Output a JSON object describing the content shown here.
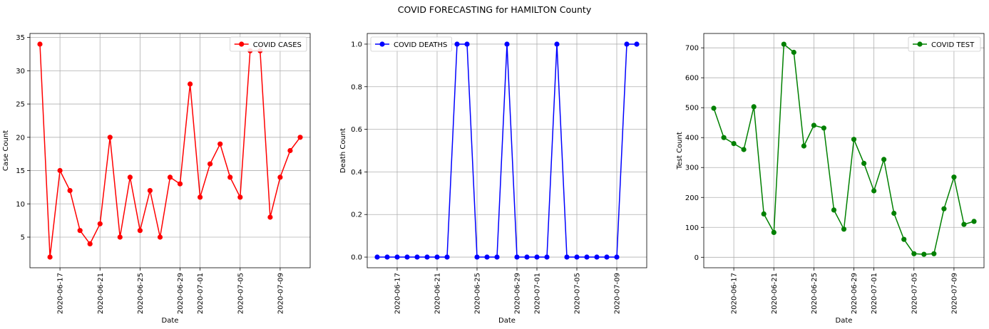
{
  "figure": {
    "title": "COVID FORECASTING for HAMILTON County"
  },
  "chart_data": [
    {
      "type": "line",
      "xlabel": "Date",
      "ylabel": "Case Count",
      "legend": "top-right",
      "grid": true,
      "color": "#ff0000",
      "x_range": [
        "2020-06-14",
        "2020-07-12"
      ],
      "ylim": [
        0.4,
        35.6
      ],
      "yticks": [
        5,
        10,
        15,
        20,
        25,
        30,
        35
      ],
      "xticks": [
        "2020-06-17",
        "2020-06-21",
        "2020-06-25",
        "2020-06-29",
        "2020-07-01",
        "2020-07-05",
        "2020-07-09"
      ],
      "series": [
        {
          "name": "COVID CASES",
          "x": [
            "2020-06-15",
            "2020-06-16",
            "2020-06-17",
            "2020-06-18",
            "2020-06-19",
            "2020-06-20",
            "2020-06-21",
            "2020-06-22",
            "2020-06-23",
            "2020-06-24",
            "2020-06-25",
            "2020-06-26",
            "2020-06-27",
            "2020-06-28",
            "2020-06-29",
            "2020-06-30",
            "2020-07-01",
            "2020-07-02",
            "2020-07-03",
            "2020-07-04",
            "2020-07-05",
            "2020-07-06",
            "2020-07-07",
            "2020-07-08",
            "2020-07-09",
            "2020-07-10",
            "2020-07-11"
          ],
          "values": [
            34,
            2,
            15,
            12,
            6,
            4,
            7,
            20,
            5,
            14,
            6,
            12,
            5,
            14,
            13,
            28,
            11,
            16,
            19,
            14,
            11,
            33,
            33,
            8,
            14,
            18,
            20
          ]
        }
      ]
    },
    {
      "type": "line",
      "xlabel": "Date",
      "ylabel": "Death Count",
      "legend": "top-left",
      "grid": true,
      "color": "#0000ff",
      "x_range": [
        "2020-06-14",
        "2020-07-12"
      ],
      "ylim": [
        -0.05,
        1.05
      ],
      "yticks": [
        0.0,
        0.2,
        0.4,
        0.6,
        0.8,
        1.0
      ],
      "ytick_labels": [
        "0.0",
        "0.2",
        "0.4",
        "0.6",
        "0.8",
        "1.0"
      ],
      "xticks": [
        "2020-06-17",
        "2020-06-21",
        "2020-06-25",
        "2020-06-29",
        "2020-07-01",
        "2020-07-05",
        "2020-07-09"
      ],
      "series": [
        {
          "name": "COVID DEATHS",
          "x": [
            "2020-06-15",
            "2020-06-16",
            "2020-06-17",
            "2020-06-18",
            "2020-06-19",
            "2020-06-20",
            "2020-06-21",
            "2020-06-22",
            "2020-06-23",
            "2020-06-24",
            "2020-06-25",
            "2020-06-26",
            "2020-06-27",
            "2020-06-28",
            "2020-06-29",
            "2020-06-30",
            "2020-07-01",
            "2020-07-02",
            "2020-07-03",
            "2020-07-04",
            "2020-07-05",
            "2020-07-06",
            "2020-07-07",
            "2020-07-08",
            "2020-07-09",
            "2020-07-10",
            "2020-07-11"
          ],
          "values": [
            0,
            0,
            0,
            0,
            0,
            0,
            0,
            0,
            1,
            1,
            0,
            0,
            0,
            1,
            0,
            0,
            0,
            0,
            1,
            0,
            0,
            0,
            0,
            0,
            0,
            1,
            1
          ]
        }
      ]
    },
    {
      "type": "line",
      "xlabel": "Date",
      "ylabel": "Test Count",
      "legend": "top-right",
      "grid": true,
      "color": "#008000",
      "x_range": [
        "2020-06-14",
        "2020-07-12"
      ],
      "ylim": [
        -35,
        748
      ],
      "yticks": [
        0,
        100,
        200,
        300,
        400,
        500,
        600,
        700
      ],
      "xticks": [
        "2020-06-17",
        "2020-06-21",
        "2020-06-25",
        "2020-06-29",
        "2020-07-01",
        "2020-07-05",
        "2020-07-09"
      ],
      "series": [
        {
          "name": "COVID TEST",
          "x": [
            "2020-06-15",
            "2020-06-16",
            "2020-06-17",
            "2020-06-18",
            "2020-06-19",
            "2020-06-20",
            "2020-06-21",
            "2020-06-22",
            "2020-06-23",
            "2020-06-24",
            "2020-06-25",
            "2020-06-26",
            "2020-06-27",
            "2020-06-28",
            "2020-06-29",
            "2020-06-30",
            "2020-07-01",
            "2020-07-02",
            "2020-07-03",
            "2020-07-04",
            "2020-07-05",
            "2020-07-06",
            "2020-07-07",
            "2020-07-08",
            "2020-07-09",
            "2020-07-10",
            "2020-07-11"
          ],
          "values": [
            498,
            400,
            380,
            360,
            503,
            145,
            83,
            712,
            685,
            372,
            441,
            432,
            158,
            94,
            394,
            314,
            222,
            327,
            147,
            60,
            12,
            10,
            12,
            162,
            268,
            110,
            120
          ]
        }
      ]
    }
  ]
}
